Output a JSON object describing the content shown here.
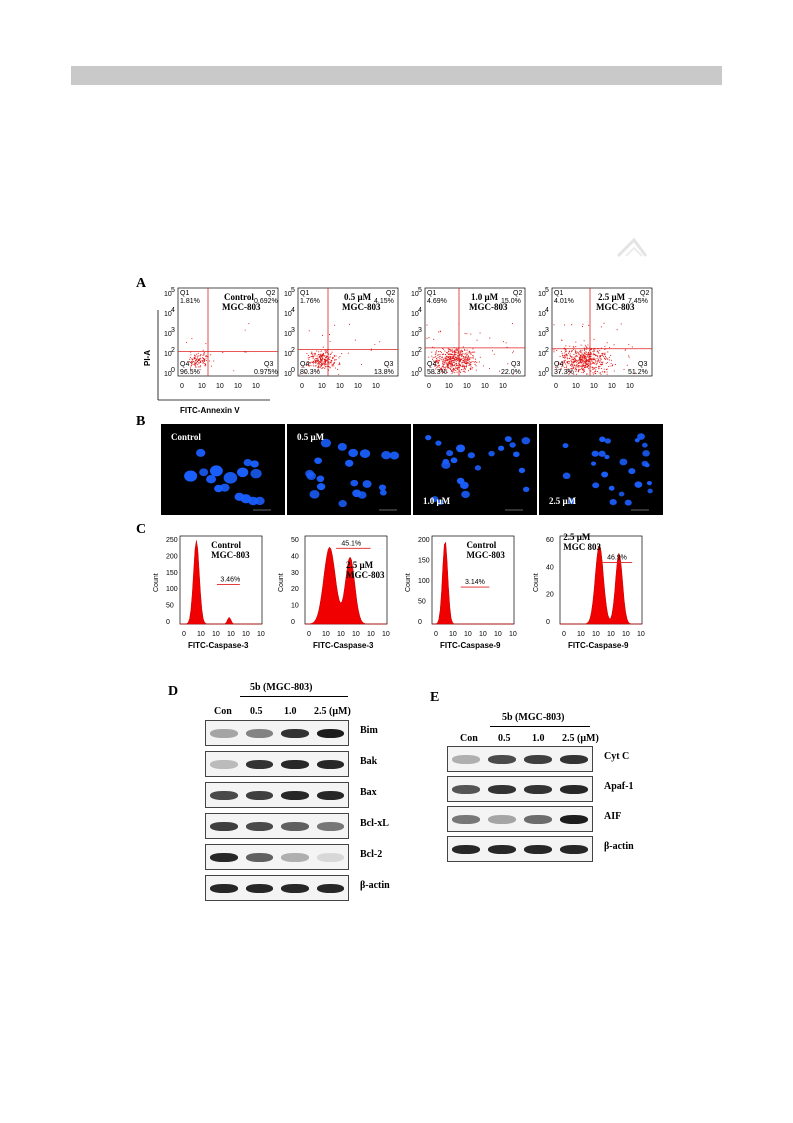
{
  "panel_labels": {
    "a": "A",
    "b": "B",
    "c": "C",
    "d": "D",
    "e": "E"
  },
  "panel_a": {
    "y_axis_label": "PI-A",
    "x_axis_label": "FITC-Annexin V",
    "plots": [
      {
        "title": "Control",
        "subtitle": "MGC-803",
        "q1": "Q1",
        "q2": "Q2",
        "q3": "Q3",
        "q4": "Q4",
        "q1v": "1.81%",
        "q2v": "0.692%",
        "q3v": "0.975%",
        "q4v": "96.5%"
      },
      {
        "title": "0.5 μM",
        "subtitle": "MGC-803",
        "q1": "Q1",
        "q2": "Q2",
        "q3": "Q3",
        "q4": "Q4",
        "q1v": "1.76%",
        "q2v": "4.15%",
        "q3v": "13.8%",
        "q4v": "80.3%"
      },
      {
        "title": "1.0 μM",
        "subtitle": "MGC-803",
        "q1": "Q1",
        "q2": "Q2",
        "q3": "Q3",
        "q4": "Q4",
        "q1v": "4.69%",
        "q2v": "15.0%",
        "q3v": "22.0%",
        "q4v": "58.3%"
      },
      {
        "title": "2.5 μM",
        "subtitle": "MGC-803",
        "q1": "Q1",
        "q2": "Q2",
        "q3": "Q3",
        "q4": "Q4",
        "q1v": "4.01%",
        "q2v": "7.45%",
        "q3v": "51.2%",
        "q4v": "37.3%"
      }
    ]
  },
  "panel_b": {
    "labels": [
      "Control",
      "0.5 μM",
      "1.0 μM",
      "2.5 μM"
    ]
  },
  "panel_c": {
    "y_axis_label": "Count",
    "plots": [
      {
        "title": "Control",
        "subtitle": "MGC-803",
        "gate": "3.46%",
        "xlabel": "FITC-Caspase-3"
      },
      {
        "title": "2.5 μM",
        "subtitle": "MGC-803",
        "gate": "45.1%",
        "xlabel": "FITC-Caspase-3"
      },
      {
        "title": "Control",
        "subtitle": "MGC-803",
        "gate": "3.14%",
        "xlabel": "FITC-Caspase-9"
      },
      {
        "title": "2.5 μM",
        "subtitle": "MGC 803",
        "gate": "46.9%",
        "xlabel": "FITC-Caspase-9"
      }
    ]
  },
  "panel_d": {
    "header": "5b (MGC-803)",
    "lanes": [
      "Con",
      "0.5",
      "1.0",
      "2.5 (μM)"
    ],
    "proteins": [
      "Bim",
      "Bak",
      "Bax",
      "Bcl-xL",
      "Bcl-2",
      "β-actin"
    ]
  },
  "panel_e": {
    "header": "5b (MGC-803)",
    "lanes": [
      "Con",
      "0.5",
      "1.0",
      "2.5 (μM)"
    ],
    "proteins": [
      "Cyt C",
      "Apaf-1",
      "AIF",
      "β-actin"
    ]
  },
  "colors": {
    "gate_line": "#e02020",
    "dot": "#e01010",
    "nucleus": "#1a5fff",
    "header_bar": "#c9c9c9"
  }
}
